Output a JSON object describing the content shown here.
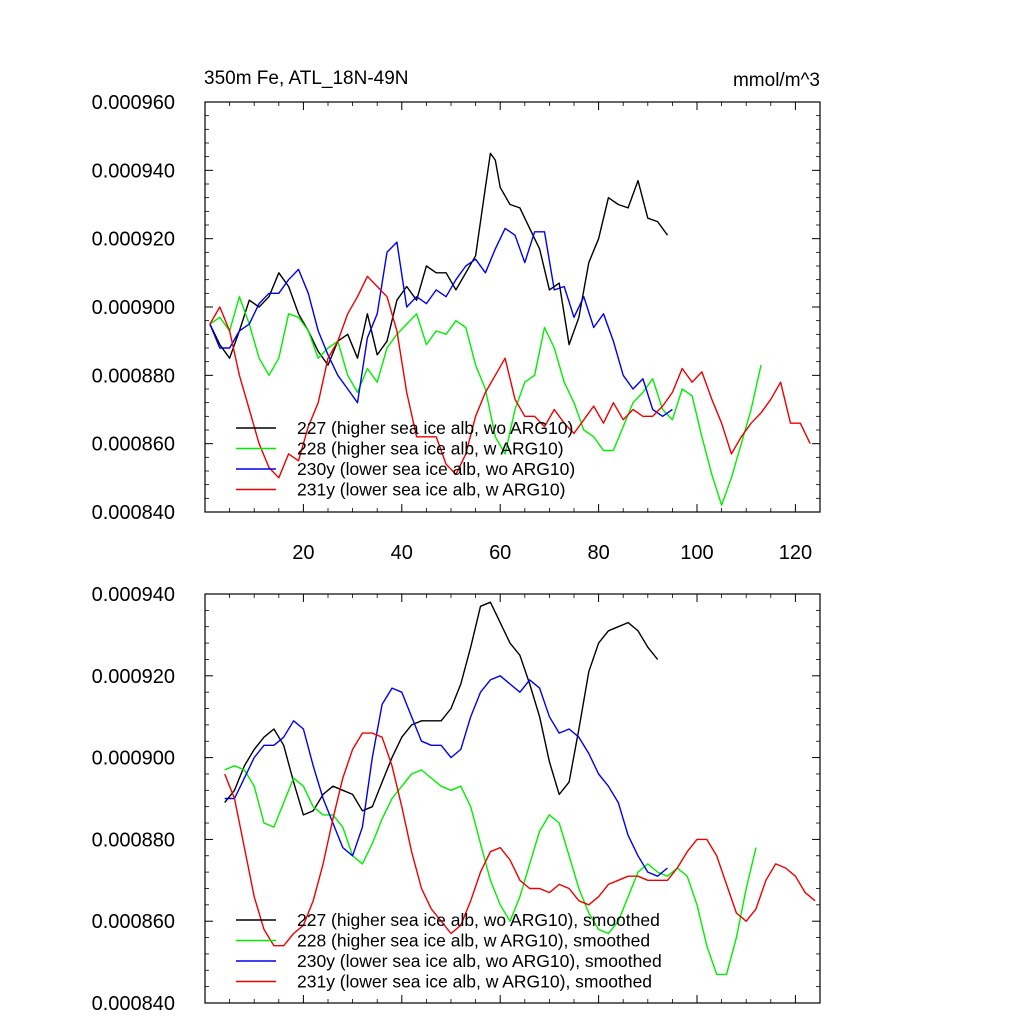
{
  "title": "350m Fe, ATL_18N-49N",
  "units": "mmol/m^3",
  "colors": {
    "s227": "#000000",
    "s228": "#00ee00",
    "s230": "#0000ee",
    "s231": "#ee0000"
  },
  "chart_data": [
    {
      "type": "line",
      "name": "raw",
      "xlim": [
        0,
        125
      ],
      "ylim": [
        0.00084,
        0.00096
      ],
      "xticks": [
        "20",
        "40",
        "60",
        "80",
        "100",
        "120"
      ],
      "yticks": [
        "0.000840",
        "0.000860",
        "0.000880",
        "0.000900",
        "0.000920",
        "0.000940",
        "0.000960"
      ],
      "legend": [
        "227 (higher sea ice alb, wo ARG10)",
        "228 (higher sea ice alb, w ARG10)",
        "230y (lower sea ice alb, wo ARG10)",
        "231y (lower sea ice alb, w ARG10)"
      ],
      "series": [
        {
          "name": "227",
          "color": "#000000",
          "x": [
            1,
            3,
            5,
            7,
            9,
            11,
            13,
            15,
            17,
            19,
            21,
            23,
            25,
            27,
            29,
            31,
            33,
            35,
            37,
            39,
            41,
            43,
            45,
            47,
            49,
            51,
            53,
            55,
            57,
            58,
            59,
            60,
            62,
            64,
            66,
            68,
            70,
            72,
            74,
            76,
            78,
            80,
            82,
            84,
            86,
            88,
            90,
            92,
            94
          ],
          "y": [
            0.000895,
            0.000889,
            0.000885,
            0.000893,
            0.000902,
            0.0009,
            0.000903,
            0.00091,
            0.000906,
            0.000898,
            0.000893,
            0.000887,
            0.000883,
            0.00089,
            0.000892,
            0.000885,
            0.000898,
            0.000886,
            0.00089,
            0.000902,
            0.000906,
            0.000902,
            0.000912,
            0.00091,
            0.00091,
            0.000905,
            0.00091,
            0.000915,
            0.000935,
            0.000945,
            0.000943,
            0.000935,
            0.00093,
            0.000929,
            0.000923,
            0.000917,
            0.000905,
            0.000907,
            0.000889,
            0.000897,
            0.000913,
            0.00092,
            0.000932,
            0.00093,
            0.000929,
            0.000937,
            0.000926,
            0.000925,
            0.000921
          ]
        },
        {
          "name": "228",
          "color": "#00ee00",
          "x": [
            1,
            3,
            5,
            7,
            9,
            11,
            13,
            15,
            17,
            19,
            21,
            23,
            25,
            27,
            29,
            31,
            33,
            35,
            37,
            39,
            41,
            43,
            45,
            47,
            49,
            51,
            53,
            55,
            57,
            59,
            61,
            63,
            65,
            67,
            69,
            71,
            73,
            75,
            77,
            79,
            81,
            83,
            85,
            87,
            89,
            91,
            93,
            95,
            97,
            99,
            101,
            103,
            105,
            107,
            109,
            111,
            113
          ],
          "y": [
            0.000895,
            0.000897,
            0.000893,
            0.000903,
            0.000895,
            0.000885,
            0.00088,
            0.000885,
            0.000898,
            0.000897,
            0.000893,
            0.000885,
            0.000888,
            0.00089,
            0.00088,
            0.000875,
            0.000882,
            0.000878,
            0.000888,
            0.000892,
            0.000895,
            0.000898,
            0.000889,
            0.000893,
            0.000892,
            0.000896,
            0.000894,
            0.000883,
            0.000876,
            0.000862,
            0.000857,
            0.00087,
            0.000878,
            0.00088,
            0.000894,
            0.000888,
            0.000878,
            0.000872,
            0.000864,
            0.000862,
            0.000858,
            0.000858,
            0.000865,
            0.000872,
            0.000875,
            0.000879,
            0.00087,
            0.000867,
            0.000876,
            0.000874,
            0.000862,
            0.000851,
            0.000842,
            0.00085,
            0.00086,
            0.00087,
            0.000883
          ]
        },
        {
          "name": "230y",
          "color": "#0000ee",
          "x": [
            1,
            3,
            5,
            7,
            9,
            11,
            13,
            15,
            17,
            19,
            21,
            23,
            25,
            27,
            29,
            31,
            33,
            35,
            37,
            39,
            41,
            43,
            45,
            47,
            49,
            51,
            53,
            55,
            57,
            59,
            61,
            63,
            65,
            67,
            69,
            71,
            73,
            75,
            77,
            79,
            81,
            83,
            85,
            87,
            89,
            91,
            93,
            95
          ],
          "y": [
            0.000895,
            0.000888,
            0.000888,
            0.000893,
            0.000895,
            0.000901,
            0.000904,
            0.000904,
            0.000908,
            0.000911,
            0.000904,
            0.000893,
            0.000886,
            0.00088,
            0.000876,
            0.000872,
            0.000891,
            0.000898,
            0.000916,
            0.000919,
            0.0009,
            0.000903,
            0.000901,
            0.000905,
            0.000903,
            0.000908,
            0.000912,
            0.000914,
            0.00091,
            0.000917,
            0.000923,
            0.000921,
            0.000913,
            0.000922,
            0.000922,
            0.000905,
            0.000906,
            0.000897,
            0.000903,
            0.000894,
            0.000898,
            0.00089,
            0.00088,
            0.000876,
            0.000879,
            0.00087,
            0.000868,
            0.00087
          ]
        },
        {
          "name": "231y",
          "color": "#ee0000",
          "x": [
            1,
            3,
            5,
            7,
            9,
            11,
            13,
            15,
            17,
            19,
            21,
            23,
            25,
            27,
            29,
            31,
            33,
            35,
            37,
            39,
            41,
            43,
            45,
            47,
            49,
            51,
            53,
            55,
            57,
            59,
            61,
            63,
            65,
            67,
            69,
            71,
            73,
            75,
            77,
            79,
            81,
            83,
            85,
            87,
            89,
            91,
            93,
            95,
            97,
            99,
            101,
            103,
            105,
            107,
            109,
            111,
            113,
            115,
            117,
            119,
            121,
            123
          ],
          "y": [
            0.000895,
            0.0009,
            0.000893,
            0.00088,
            0.00087,
            0.00086,
            0.000853,
            0.00085,
            0.000857,
            0.000855,
            0.000865,
            0.000872,
            0.000885,
            0.00089,
            0.000898,
            0.000903,
            0.000909,
            0.000906,
            0.000903,
            0.000893,
            0.000875,
            0.000862,
            0.000862,
            0.000862,
            0.000854,
            0.000851,
            0.000857,
            0.000868,
            0.000875,
            0.00088,
            0.000885,
            0.000873,
            0.000868,
            0.000868,
            0.000865,
            0.00087,
            0.000866,
            0.000863,
            0.000867,
            0.000871,
            0.000866,
            0.000872,
            0.000867,
            0.00087,
            0.000868,
            0.000868,
            0.000871,
            0.000875,
            0.000882,
            0.000878,
            0.000881,
            0.000873,
            0.000866,
            0.000857,
            0.000862,
            0.000866,
            0.000869,
            0.000873,
            0.000878,
            0.000866,
            0.000866,
            0.00086
          ]
        }
      ]
    },
    {
      "type": "line",
      "name": "smoothed",
      "xlim": [
        0,
        125
      ],
      "ylim": [
        0.00084,
        0.00094
      ],
      "xticks": [],
      "yticks": [
        "0.000840",
        "0.000860",
        "0.000880",
        "0.000900",
        "0.000920",
        "0.000940"
      ],
      "legend": [
        "227 (higher sea ice alb, wo ARG10), smoothed",
        "228 (higher sea ice alb, w ARG10), smoothed",
        "230y (lower sea ice alb, wo ARG10), smoothed",
        "231y (lower sea ice alb, w ARG10), smoothed"
      ],
      "series": [
        {
          "name": "227",
          "color": "#000000",
          "x": [
            4,
            6,
            8,
            10,
            12,
            14,
            16,
            18,
            20,
            22,
            24,
            26,
            28,
            30,
            32,
            34,
            36,
            38,
            40,
            42,
            44,
            46,
            48,
            50,
            52,
            54,
            56,
            58,
            60,
            62,
            64,
            66,
            68,
            70,
            72,
            74,
            76,
            78,
            80,
            82,
            84,
            86,
            88,
            90,
            92
          ],
          "y": [
            0.000889,
            0.000892,
            0.000898,
            0.000902,
            0.000905,
            0.000907,
            0.000903,
            0.000894,
            0.000886,
            0.000887,
            0.000891,
            0.000893,
            0.000892,
            0.000891,
            0.000887,
            0.000888,
            0.000894,
            0.0009,
            0.000905,
            0.000908,
            0.000909,
            0.000909,
            0.000909,
            0.000912,
            0.000918,
            0.000927,
            0.000937,
            0.000938,
            0.000933,
            0.000928,
            0.000925,
            0.000918,
            0.00091,
            0.000899,
            0.000891,
            0.000894,
            0.000907,
            0.000921,
            0.000928,
            0.000931,
            0.000932,
            0.000933,
            0.000931,
            0.000927,
            0.000924
          ]
        },
        {
          "name": "228",
          "color": "#00ee00",
          "x": [
            4,
            6,
            8,
            10,
            12,
            14,
            16,
            18,
            20,
            22,
            24,
            26,
            28,
            30,
            32,
            34,
            36,
            38,
            40,
            42,
            44,
            46,
            48,
            50,
            52,
            54,
            56,
            58,
            60,
            62,
            64,
            66,
            68,
            70,
            72,
            74,
            76,
            78,
            80,
            82,
            84,
            86,
            88,
            90,
            92,
            94,
            96,
            98,
            100,
            102,
            104,
            106,
            108,
            110,
            112
          ],
          "y": [
            0.000897,
            0.000898,
            0.000897,
            0.000893,
            0.000884,
            0.000883,
            0.000889,
            0.000895,
            0.000893,
            0.000888,
            0.000886,
            0.000886,
            0.000883,
            0.000876,
            0.000874,
            0.000879,
            0.000885,
            0.00089,
            0.000893,
            0.000896,
            0.000897,
            0.000895,
            0.000893,
            0.000892,
            0.000893,
            0.000888,
            0.000879,
            0.00087,
            0.000864,
            0.00086,
            0.000866,
            0.000874,
            0.000882,
            0.000886,
            0.000884,
            0.000876,
            0.000868,
            0.000862,
            0.000858,
            0.000857,
            0.00086,
            0.000866,
            0.000872,
            0.000874,
            0.000872,
            0.000871,
            0.000873,
            0.000871,
            0.000864,
            0.000854,
            0.000847,
            0.000847,
            0.000856,
            0.000868,
            0.000878
          ]
        },
        {
          "name": "230y",
          "color": "#0000ee",
          "x": [
            4,
            6,
            8,
            10,
            12,
            14,
            16,
            18,
            20,
            22,
            24,
            26,
            28,
            30,
            32,
            34,
            36,
            38,
            40,
            42,
            44,
            46,
            48,
            50,
            52,
            54,
            56,
            58,
            60,
            62,
            64,
            66,
            68,
            70,
            72,
            74,
            76,
            78,
            80,
            82,
            84,
            86,
            88,
            90,
            92,
            94
          ],
          "y": [
            0.00089,
            0.00089,
            0.000895,
            0.0009,
            0.000903,
            0.000903,
            0.000905,
            0.000909,
            0.000907,
            0.000898,
            0.00089,
            0.000884,
            0.000878,
            0.000876,
            0.000883,
            0.0009,
            0.000913,
            0.000917,
            0.000916,
            0.00091,
            0.000904,
            0.000903,
            0.000903,
            0.0009,
            0.000902,
            0.00091,
            0.000916,
            0.000919,
            0.00092,
            0.000918,
            0.000916,
            0.000919,
            0.000917,
            0.00091,
            0.000906,
            0.000907,
            0.000905,
            0.000901,
            0.000896,
            0.000893,
            0.000889,
            0.000881,
            0.000876,
            0.000872,
            0.000871,
            0.000873
          ]
        },
        {
          "name": "231y",
          "color": "#ee0000",
          "x": [
            4,
            6,
            8,
            10,
            12,
            14,
            16,
            18,
            20,
            22,
            24,
            26,
            28,
            30,
            32,
            34,
            36,
            38,
            40,
            42,
            44,
            46,
            48,
            50,
            52,
            54,
            56,
            58,
            60,
            62,
            64,
            66,
            68,
            70,
            72,
            74,
            76,
            78,
            80,
            82,
            84,
            86,
            88,
            90,
            92,
            94,
            96,
            98,
            100,
            102,
            104,
            106,
            108,
            110,
            112,
            114,
            116,
            118,
            120,
            122,
            124
          ],
          "y": [
            0.000896,
            0.00089,
            0.000878,
            0.000866,
            0.000858,
            0.000854,
            0.000854,
            0.000857,
            0.000859,
            0.000865,
            0.000874,
            0.000885,
            0.000895,
            0.000902,
            0.000906,
            0.000906,
            0.000905,
            0.000898,
            0.000888,
            0.000877,
            0.000868,
            0.000863,
            0.00086,
            0.000857,
            0.000859,
            0.000865,
            0.000872,
            0.000877,
            0.000878,
            0.000875,
            0.00087,
            0.000868,
            0.000868,
            0.000867,
            0.000869,
            0.000868,
            0.000865,
            0.000864,
            0.000866,
            0.000869,
            0.00087,
            0.000871,
            0.000871,
            0.00087,
            0.00087,
            0.00087,
            0.000873,
            0.000877,
            0.00088,
            0.00088,
            0.000876,
            0.000869,
            0.000862,
            0.00086,
            0.000863,
            0.00087,
            0.000874,
            0.000873,
            0.000871,
            0.000867,
            0.000865
          ]
        }
      ]
    }
  ]
}
